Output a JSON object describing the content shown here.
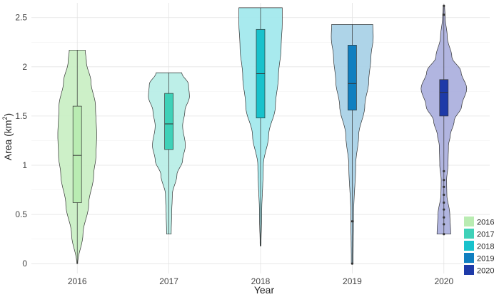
{
  "chart_data": {
    "type": "violin",
    "xlabel": "Year",
    "ylabel_main": "Area (km",
    "ylabel_sup": "2",
    "ylabel_close": ")",
    "ylim": [
      -0.1,
      2.65
    ],
    "yticks": [
      0,
      0.5,
      1,
      1.5,
      2,
      2.5
    ],
    "ytick_labels": [
      "0",
      "0.5",
      "1",
      "1.5",
      "2",
      "2.5"
    ],
    "grid": true,
    "legend_position": "bottom-right",
    "categories": [
      "2016",
      "2017",
      "2018",
      "2019",
      "2020"
    ],
    "series": [
      {
        "name": "2016",
        "color": "#c8eec2",
        "box_color": "#b9ecb2",
        "min": 0.0,
        "q1": 0.62,
        "median": 1.1,
        "q3": 1.6,
        "max": 2.17,
        "outliers": [],
        "density": [
          [
            0.0,
            0.02
          ],
          [
            0.3,
            0.25
          ],
          [
            0.6,
            0.5
          ],
          [
            0.9,
            0.72
          ],
          [
            1.1,
            0.82
          ],
          [
            1.3,
            0.85
          ],
          [
            1.6,
            0.8
          ],
          [
            1.85,
            0.6
          ],
          [
            2.05,
            0.4
          ],
          [
            2.17,
            0.35
          ]
        ]
      },
      {
        "name": "2017",
        "color": "#b6ede6",
        "box_color": "#3fd1b8",
        "min": 0.3,
        "q1": 1.16,
        "median": 1.42,
        "q3": 1.73,
        "max": 1.94,
        "outliers": [],
        "density": [
          [
            0.3,
            0.1
          ],
          [
            0.5,
            0.12
          ],
          [
            0.7,
            0.15
          ],
          [
            0.9,
            0.35
          ],
          [
            1.05,
            0.6
          ],
          [
            1.2,
            0.72
          ],
          [
            1.4,
            0.6
          ],
          [
            1.55,
            0.7
          ],
          [
            1.7,
            0.9
          ],
          [
            1.82,
            0.86
          ],
          [
            1.94,
            0.56
          ]
        ]
      },
      {
        "name": "2018",
        "color": "#9fe8ec",
        "box_color": "#18c2cc",
        "min": 0.18,
        "q1": 1.48,
        "median": 1.93,
        "q3": 2.38,
        "max": 2.6,
        "outliers": [],
        "density": [
          [
            0.18,
            0.02
          ],
          [
            0.5,
            0.05
          ],
          [
            1.0,
            0.12
          ],
          [
            1.3,
            0.35
          ],
          [
            1.6,
            0.65
          ],
          [
            1.9,
            0.78
          ],
          [
            2.2,
            0.9
          ],
          [
            2.45,
            0.95
          ],
          [
            2.6,
            0.95
          ]
        ]
      },
      {
        "name": "2019",
        "color": "#a5cfe6",
        "box_color": "#107fc0",
        "min": 0.0,
        "q1": 1.56,
        "median": 1.83,
        "q3": 2.22,
        "max": 2.43,
        "outliers": [
          0.0,
          0.43
        ],
        "density": [
          [
            0.0,
            0.04
          ],
          [
            0.5,
            0.06
          ],
          [
            1.0,
            0.15
          ],
          [
            1.3,
            0.28
          ],
          [
            1.6,
            0.55
          ],
          [
            1.85,
            0.72
          ],
          [
            2.1,
            0.82
          ],
          [
            2.3,
            0.92
          ],
          [
            2.43,
            0.9
          ]
        ]
      },
      {
        "name": "2020",
        "color": "#a9addd",
        "box_color": "#1e3aa8",
        "min": 0.3,
        "q1": 1.5,
        "median": 1.74,
        "q3": 1.87,
        "max": 2.62,
        "outliers": [
          0.3,
          0.4,
          0.47,
          0.55,
          0.62,
          0.7,
          0.78,
          0.85,
          0.94,
          2.53,
          2.62
        ],
        "density": [
          [
            0.3,
            0.3
          ],
          [
            0.5,
            0.26
          ],
          [
            0.7,
            0.13
          ],
          [
            0.85,
            0.12
          ],
          [
            1.0,
            0.18
          ],
          [
            1.2,
            0.2
          ],
          [
            1.3,
            0.28
          ],
          [
            1.45,
            0.45
          ],
          [
            1.6,
            0.78
          ],
          [
            1.78,
            1.0
          ],
          [
            1.95,
            0.75
          ],
          [
            2.1,
            0.35
          ],
          [
            2.3,
            0.15
          ],
          [
            2.5,
            0.06
          ],
          [
            2.62,
            0.03
          ]
        ]
      }
    ]
  }
}
